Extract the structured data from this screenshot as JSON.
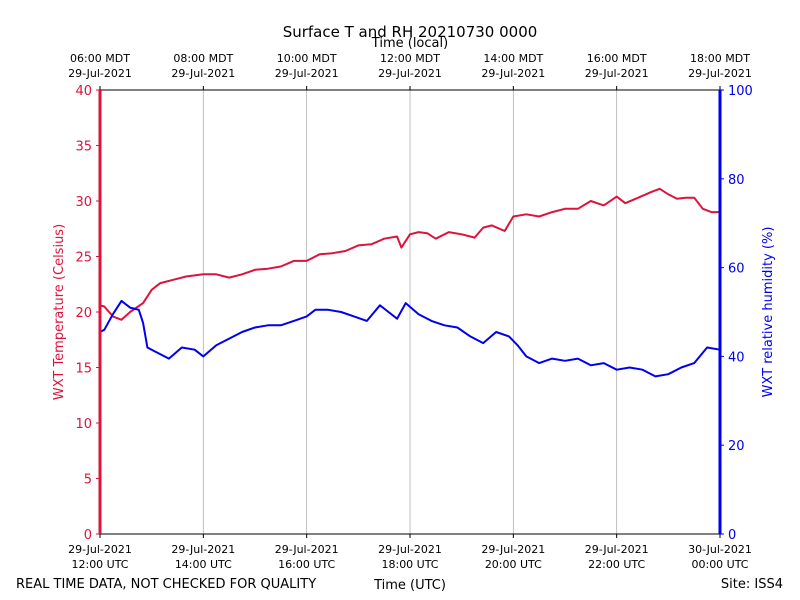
{
  "chart_data": {
    "type": "line",
    "title": "Surface T and RH 20210730 0000",
    "xlabel_bottom": "Time (UTC)",
    "xlabel_top": "Time (local)",
    "ylabel_left": "WXT Temperature (Celsius)",
    "ylabel_right": "WXT relative humidity (%)",
    "x_range": [
      "2021-07-29 12:00 UTC",
      "2021-07-30 00:00 UTC"
    ],
    "ylim_left": [
      0,
      40
    ],
    "ylim_right": [
      0,
      100
    ],
    "left_ticks": [
      0,
      5,
      10,
      15,
      20,
      25,
      30,
      35,
      40
    ],
    "right_ticks": [
      0,
      20,
      40,
      60,
      80,
      100
    ],
    "bottom_ticks": [
      {
        "line1": "29-Jul-2021",
        "line2": "12:00 UTC"
      },
      {
        "line1": "29-Jul-2021",
        "line2": "14:00 UTC"
      },
      {
        "line1": "29-Jul-2021",
        "line2": "16:00 UTC"
      },
      {
        "line1": "29-Jul-2021",
        "line2": "18:00 UTC"
      },
      {
        "line1": "29-Jul-2021",
        "line2": "20:00 UTC"
      },
      {
        "line1": "29-Jul-2021",
        "line2": "22:00 UTC"
      },
      {
        "line1": "30-Jul-2021",
        "line2": "00:00 UTC"
      }
    ],
    "top_ticks": [
      {
        "line1": "06:00 MDT",
        "line2": "29-Jul-2021"
      },
      {
        "line1": "08:00 MDT",
        "line2": "29-Jul-2021"
      },
      {
        "line1": "10:00 MDT",
        "line2": "29-Jul-2021"
      },
      {
        "line1": "12:00 MDT",
        "line2": "29-Jul-2021"
      },
      {
        "line1": "14:00 MDT",
        "line2": "29-Jul-2021"
      },
      {
        "line1": "16:00 MDT",
        "line2": "29-Jul-2021"
      },
      {
        "line1": "18:00 MDT",
        "line2": "29-Jul-2021"
      }
    ],
    "grid": "vertical",
    "series": [
      {
        "axis": "left",
        "color": "#dc143c",
        "x": [
          "2021-07-29 12:00",
          "2021-07-29 12:05",
          "2021-07-29 12:15",
          "2021-07-29 12:25",
          "2021-07-29 12:35",
          "2021-07-29 12:50",
          "2021-07-29 13:00",
          "2021-07-29 13:10",
          "2021-07-29 13:25",
          "2021-07-29 13:40",
          "2021-07-29 14:00",
          "2021-07-29 14:15",
          "2021-07-29 14:30",
          "2021-07-29 14:45",
          "2021-07-29 15:00",
          "2021-07-29 15:15",
          "2021-07-29 15:30",
          "2021-07-29 15:45",
          "2021-07-29 16:00",
          "2021-07-29 16:15",
          "2021-07-29 16:30",
          "2021-07-29 16:45",
          "2021-07-29 17:00",
          "2021-07-29 17:15",
          "2021-07-29 17:30",
          "2021-07-29 17:45",
          "2021-07-29 17:50",
          "2021-07-29 18:00",
          "2021-07-29 18:10",
          "2021-07-29 18:20",
          "2021-07-29 18:30",
          "2021-07-29 18:45",
          "2021-07-29 19:00",
          "2021-07-29 19:15",
          "2021-07-29 19:25",
          "2021-07-29 19:35",
          "2021-07-29 19:50",
          "2021-07-29 20:00",
          "2021-07-29 20:15",
          "2021-07-29 20:30",
          "2021-07-29 20:45",
          "2021-07-29 21:00",
          "2021-07-29 21:15",
          "2021-07-29 21:30",
          "2021-07-29 21:45",
          "2021-07-29 22:00",
          "2021-07-29 22:10",
          "2021-07-29 22:25",
          "2021-07-29 22:40",
          "2021-07-29 22:50",
          "2021-07-29 23:00",
          "2021-07-29 23:10",
          "2021-07-29 23:20",
          "2021-07-29 23:30",
          "2021-07-29 23:40",
          "2021-07-29 23:50",
          "2021-07-30 00:00"
        ],
        "values": [
          20.6,
          20.5,
          19.6,
          19.3,
          20.0,
          20.8,
          22.0,
          22.6,
          22.9,
          23.2,
          23.4,
          23.4,
          23.1,
          23.4,
          23.8,
          23.9,
          24.1,
          24.6,
          24.6,
          25.2,
          25.3,
          25.5,
          26.0,
          26.1,
          26.6,
          26.8,
          25.8,
          27.0,
          27.2,
          27.1,
          26.6,
          27.2,
          27.0,
          26.7,
          27.6,
          27.8,
          27.3,
          28.6,
          28.8,
          28.6,
          29.0,
          29.3,
          29.3,
          30.0,
          29.6,
          30.4,
          29.8,
          30.3,
          30.8,
          31.1,
          30.6,
          30.2,
          30.3,
          30.3,
          29.3,
          29.0,
          29.0
        ]
      },
      {
        "axis": "right",
        "color": "#0000ee",
        "x": [
          "2021-07-29 12:00",
          "2021-07-29 12:05",
          "2021-07-29 12:15",
          "2021-07-29 12:25",
          "2021-07-29 12:35",
          "2021-07-29 12:45",
          "2021-07-29 12:50",
          "2021-07-29 12:55",
          "2021-07-29 13:05",
          "2021-07-29 13:20",
          "2021-07-29 13:35",
          "2021-07-29 13:50",
          "2021-07-29 14:00",
          "2021-07-29 14:15",
          "2021-07-29 14:30",
          "2021-07-29 14:45",
          "2021-07-29 15:00",
          "2021-07-29 15:15",
          "2021-07-29 15:30",
          "2021-07-29 15:45",
          "2021-07-29 16:00",
          "2021-07-29 16:10",
          "2021-07-29 16:25",
          "2021-07-29 16:40",
          "2021-07-29 16:55",
          "2021-07-29 17:10",
          "2021-07-29 17:25",
          "2021-07-29 17:35",
          "2021-07-29 17:45",
          "2021-07-29 17:55",
          "2021-07-29 18:10",
          "2021-07-29 18:25",
          "2021-07-29 18:40",
          "2021-07-29 18:55",
          "2021-07-29 19:10",
          "2021-07-29 19:25",
          "2021-07-29 19:40",
          "2021-07-29 19:55",
          "2021-07-29 20:05",
          "2021-07-29 20:15",
          "2021-07-29 20:30",
          "2021-07-29 20:45",
          "2021-07-29 21:00",
          "2021-07-29 21:15",
          "2021-07-29 21:30",
          "2021-07-29 21:45",
          "2021-07-29 22:00",
          "2021-07-29 22:15",
          "2021-07-29 22:30",
          "2021-07-29 22:45",
          "2021-07-29 23:00",
          "2021-07-29 23:15",
          "2021-07-29 23:30",
          "2021-07-29 23:45",
          "2021-07-30 00:00"
        ],
        "values": [
          45.5,
          46.0,
          49.5,
          52.5,
          51.0,
          50.5,
          47.5,
          42.0,
          41.0,
          39.5,
          42.0,
          41.5,
          40.0,
          42.5,
          44.0,
          45.5,
          46.5,
          47.0,
          47.0,
          48.0,
          49.0,
          50.5,
          50.5,
          50.0,
          49.0,
          48.0,
          51.5,
          50.0,
          48.5,
          52.0,
          49.5,
          48.0,
          47.0,
          46.5,
          44.5,
          43.0,
          45.5,
          44.5,
          42.5,
          40.0,
          38.5,
          39.5,
          39.0,
          39.5,
          38.0,
          38.5,
          37.0,
          37.5,
          37.0,
          35.5,
          36.0,
          37.5,
          38.5,
          42.0,
          41.5
        ]
      }
    ]
  },
  "footer": {
    "left_note": "REAL TIME DATA, NOT CHECKED FOR QUALITY",
    "site": "Site: ISS4"
  }
}
